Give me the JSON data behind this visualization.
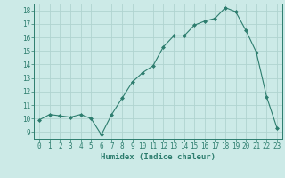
{
  "x": [
    0,
    1,
    2,
    3,
    4,
    5,
    6,
    7,
    8,
    9,
    10,
    11,
    12,
    13,
    14,
    15,
    16,
    17,
    18,
    19,
    20,
    21,
    22,
    23
  ],
  "y": [
    9.9,
    10.3,
    10.2,
    10.1,
    10.3,
    10.0,
    8.8,
    10.3,
    11.5,
    12.7,
    13.4,
    13.9,
    15.3,
    16.1,
    16.1,
    16.9,
    17.2,
    17.4,
    18.2,
    17.9,
    16.5,
    14.9,
    11.6,
    9.3
  ],
  "line_color": "#2d7d6e",
  "marker": "D",
  "marker_size": 2.0,
  "bg_color": "#cceae7",
  "grid_color": "#b0d4d0",
  "xlabel": "Humidex (Indice chaleur)",
  "xlim": [
    -0.5,
    23.5
  ],
  "ylim": [
    8.5,
    18.5
  ],
  "yticks": [
    9,
    10,
    11,
    12,
    13,
    14,
    15,
    16,
    17,
    18
  ],
  "xticks": [
    0,
    1,
    2,
    3,
    4,
    5,
    6,
    7,
    8,
    9,
    10,
    11,
    12,
    13,
    14,
    15,
    16,
    17,
    18,
    19,
    20,
    21,
    22,
    23
  ],
  "tick_color": "#2d7d6e",
  "label_fontsize": 6.5,
  "tick_fontsize": 5.5,
  "linewidth": 0.8
}
